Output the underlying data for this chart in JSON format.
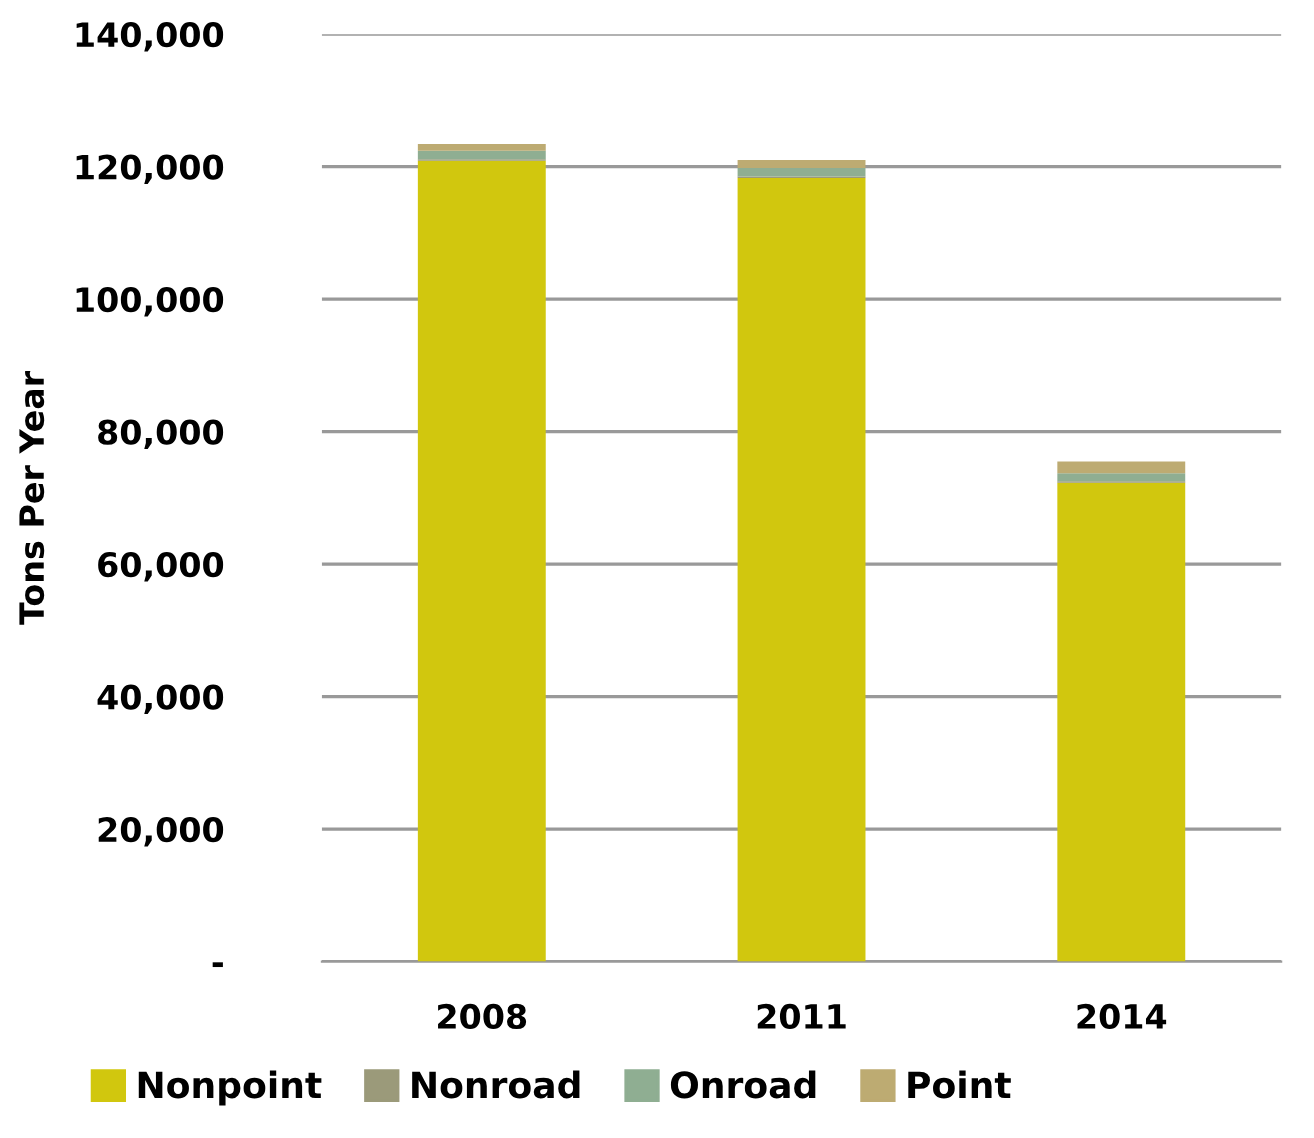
{
  "chart_data": {
    "type": "bar",
    "stacked": true,
    "ylabel": "Tons Per Year",
    "categories": [
      "2008",
      "2011",
      "2014"
    ],
    "series": [
      {
        "name": "Nonpoint",
        "color": "#d1c70e",
        "values": [
          120900,
          118300,
          72300
        ]
      },
      {
        "name": "Nonroad",
        "color": "#9b9a7a",
        "values": [
          200,
          200,
          200
        ]
      },
      {
        "name": "Onroad",
        "color": "#8fae92",
        "values": [
          1300,
          1300,
          1200
        ]
      },
      {
        "name": "Point",
        "color": "#bdab72",
        "values": [
          1000,
          1200,
          1800
        ]
      }
    ],
    "ylim": [
      0,
      140000
    ],
    "yticks": [
      {
        "value": 0,
        "label": "-"
      },
      {
        "value": 20000,
        "label": "20,000"
      },
      {
        "value": 40000,
        "label": "40,000"
      },
      {
        "value": 60000,
        "label": "60,000"
      },
      {
        "value": 80000,
        "label": "80,000"
      },
      {
        "value": 100000,
        "label": "100,000"
      },
      {
        "value": 120000,
        "label": "120,000"
      },
      {
        "value": 140000,
        "label": "140,000"
      }
    ],
    "grid": "y",
    "legend": "bottom"
  }
}
